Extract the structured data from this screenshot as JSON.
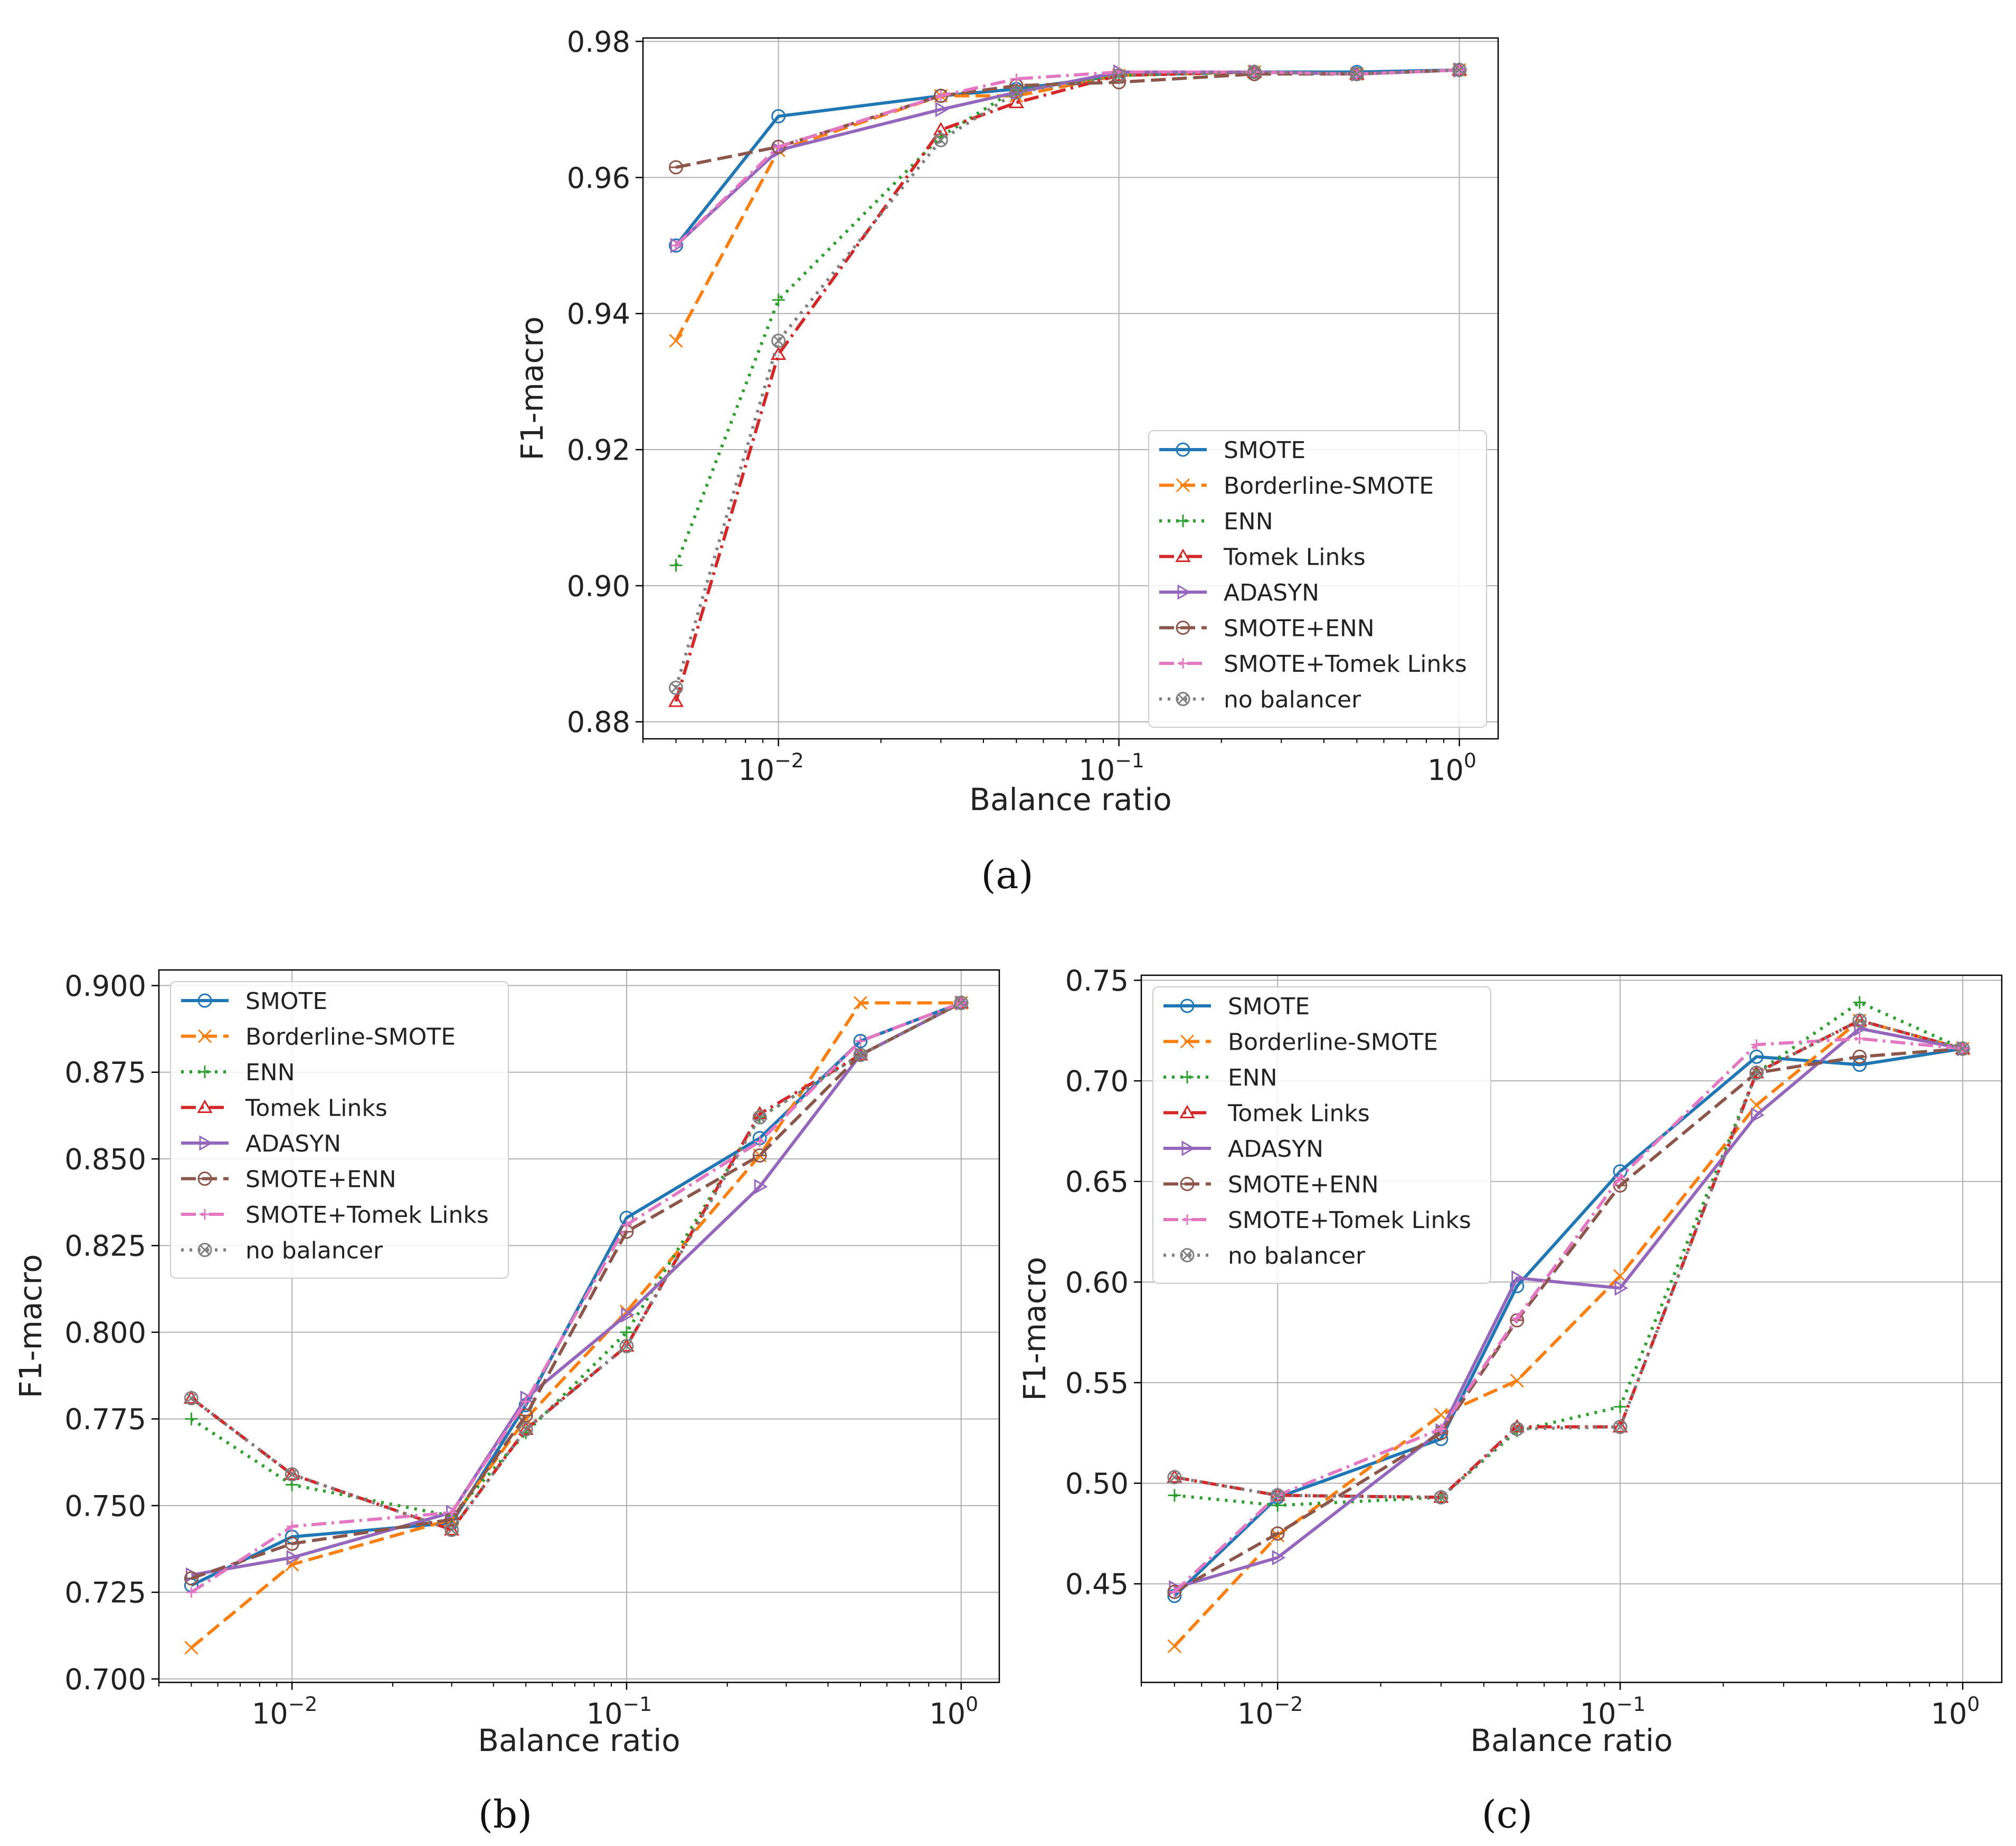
{
  "figure": {
    "panel_labels": [
      "(a)",
      "(b)",
      "(c)"
    ]
  },
  "styles": [
    {
      "name": "SMOTE",
      "color": "#1f77b4",
      "dash": "solid",
      "marker": "circle"
    },
    {
      "name": "Borderline-SMOTE",
      "color": "#ff7f0e",
      "dash": "dashed",
      "marker": "x"
    },
    {
      "name": "ENN",
      "color": "#2ca02c",
      "dash": "dotted",
      "marker": "plus"
    },
    {
      "name": "Tomek Links",
      "color": "#d62728",
      "dash": "dashdot",
      "marker": "triangle"
    },
    {
      "name": "ADASYN",
      "color": "#9467bd",
      "dash": "solid",
      "marker": "tri-right"
    },
    {
      "name": "SMOTE+ENN",
      "color": "#8c564b",
      "dash": "dashed",
      "marker": "circle-minus"
    },
    {
      "name": "SMOTE+Tomek Links",
      "color": "#e377c2",
      "dash": "dashdot",
      "marker": "plus-small"
    },
    {
      "name": "no balancer",
      "color": "#7f7f7f",
      "dash": "dotted",
      "marker": "x-circle"
    }
  ],
  "chart_data": [
    {
      "type": "line",
      "panel": "(a)",
      "xlabel": "Balance ratio",
      "ylabel": "F1-macro",
      "xscale": "log",
      "xlim": [
        0.004,
        1.3
      ],
      "ylim": [
        0.8775,
        0.9805
      ],
      "xticks": [
        {
          "value": 0.01,
          "mant": "10",
          "exp": "−2"
        },
        {
          "value": 0.1,
          "mant": "10",
          "exp": "−1"
        },
        {
          "value": 1,
          "mant": "10",
          "exp": "0"
        }
      ],
      "yticks": [
        0.88,
        0.9,
        0.92,
        0.94,
        0.96,
        0.98
      ],
      "ytick_labels": [
        "0.88",
        "0.90",
        "0.92",
        "0.94",
        "0.96",
        "0.98"
      ],
      "legend": "lower right",
      "grid": true,
      "x": [
        0.005,
        0.01,
        0.03,
        0.05,
        0.1,
        0.25,
        0.5,
        1.0
      ],
      "series": [
        {
          "name": "SMOTE",
          "values": [
            0.95,
            0.969,
            0.972,
            0.973,
            0.975,
            0.9755,
            0.9755,
            0.9758
          ]
        },
        {
          "name": "Borderline-SMOTE",
          "values": [
            0.936,
            0.964,
            0.972,
            0.972,
            0.975,
            0.9755,
            0.9752,
            0.9758
          ]
        },
        {
          "name": "ENN",
          "values": [
            0.903,
            0.942,
            0.966,
            0.973,
            0.975,
            0.9755,
            0.9752,
            0.9758
          ]
        },
        {
          "name": "Tomek Links",
          "values": [
            0.883,
            0.934,
            0.967,
            0.971,
            0.975,
            0.9755,
            0.9752,
            0.9758
          ]
        },
        {
          "name": "ADASYN",
          "values": [
            0.95,
            0.964,
            0.97,
            0.9725,
            0.9755,
            0.9755,
            0.9752,
            0.9758
          ]
        },
        {
          "name": "SMOTE+ENN",
          "values": [
            0.9615,
            0.9645,
            0.972,
            0.9735,
            0.974,
            0.9752,
            0.9752,
            0.9758
          ]
        },
        {
          "name": "SMOTE+Tomek Links",
          "values": [
            0.95,
            0.9645,
            0.972,
            0.9745,
            0.9755,
            0.9755,
            0.9752,
            0.9758
          ]
        },
        {
          "name": "no balancer",
          "values": [
            0.885,
            0.936,
            0.9655,
            0.9725,
            0.975,
            0.9755,
            0.9752,
            0.9758
          ]
        }
      ]
    },
    {
      "type": "line",
      "panel": "(b)",
      "xlabel": "Balance ratio",
      "ylabel": "F1-macro",
      "xscale": "log",
      "xlim": [
        0.004,
        1.3
      ],
      "ylim": [
        0.699,
        0.9045
      ],
      "xticks": [
        {
          "value": 0.01,
          "mant": "10",
          "exp": "−2"
        },
        {
          "value": 0.1,
          "mant": "10",
          "exp": "−1"
        },
        {
          "value": 1,
          "mant": "10",
          "exp": "0"
        }
      ],
      "yticks": [
        0.7,
        0.725,
        0.75,
        0.775,
        0.8,
        0.825,
        0.85,
        0.875,
        0.9
      ],
      "ytick_labels": [
        "0.700",
        "0.725",
        "0.750",
        "0.775",
        "0.800",
        "0.825",
        "0.850",
        "0.875",
        "0.900"
      ],
      "legend": "upper left",
      "grid": true,
      "x": [
        0.005,
        0.01,
        0.03,
        0.05,
        0.1,
        0.25,
        0.5,
        1.0
      ],
      "series": [
        {
          "name": "SMOTE",
          "values": [
            0.727,
            0.741,
            0.745,
            0.779,
            0.833,
            0.856,
            0.884,
            0.895
          ]
        },
        {
          "name": "Borderline-SMOTE",
          "values": [
            0.709,
            0.733,
            0.746,
            0.775,
            0.806,
            0.851,
            0.895,
            0.895
          ]
        },
        {
          "name": "ENN",
          "values": [
            0.775,
            0.756,
            0.747,
            0.771,
            0.8,
            0.862,
            0.88,
            0.895
          ]
        },
        {
          "name": "Tomek Links",
          "values": [
            0.781,
            0.759,
            0.743,
            0.772,
            0.796,
            0.863,
            0.88,
            0.895
          ]
        },
        {
          "name": "ADASYN",
          "values": [
            0.73,
            0.735,
            0.748,
            0.781,
            0.805,
            0.842,
            0.88,
            0.895
          ]
        },
        {
          "name": "SMOTE+ENN",
          "values": [
            0.729,
            0.739,
            0.746,
            0.776,
            0.829,
            0.851,
            0.88,
            0.895
          ]
        },
        {
          "name": "SMOTE+Tomek Links",
          "values": [
            0.725,
            0.744,
            0.748,
            0.78,
            0.831,
            0.855,
            0.884,
            0.895
          ]
        },
        {
          "name": "no balancer",
          "values": [
            0.781,
            0.759,
            0.743,
            0.772,
            0.796,
            0.862,
            0.88,
            0.895
          ]
        }
      ]
    },
    {
      "type": "line",
      "panel": "(c)",
      "xlabel": "Balance ratio",
      "ylabel": "F1-macro",
      "xscale": "log",
      "xlim": [
        0.004,
        1.3
      ],
      "ylim": [
        0.401,
        0.7525
      ],
      "xticks": [
        {
          "value": 0.01,
          "mant": "10",
          "exp": "−2"
        },
        {
          "value": 0.1,
          "mant": "10",
          "exp": "−1"
        },
        {
          "value": 1,
          "mant": "10",
          "exp": "0"
        }
      ],
      "yticks": [
        0.45,
        0.5,
        0.55,
        0.6,
        0.65,
        0.7,
        0.75
      ],
      "ytick_labels": [
        "0.45",
        "0.50",
        "0.55",
        "0.60",
        "0.65",
        "0.70",
        "0.75"
      ],
      "legend": "upper left",
      "grid": true,
      "x": [
        0.005,
        0.01,
        0.03,
        0.05,
        0.1,
        0.25,
        0.5,
        1.0
      ],
      "series": [
        {
          "name": "SMOTE",
          "values": [
            0.444,
            0.493,
            0.522,
            0.598,
            0.655,
            0.712,
            0.708,
            0.716
          ]
        },
        {
          "name": "Borderline-SMOTE",
          "values": [
            0.419,
            0.474,
            0.534,
            0.551,
            0.603,
            0.688,
            0.73,
            0.716
          ]
        },
        {
          "name": "ENN",
          "values": [
            0.494,
            0.489,
            0.493,
            0.526,
            0.538,
            0.704,
            0.739,
            0.716
          ]
        },
        {
          "name": "Tomek Links",
          "values": [
            0.503,
            0.494,
            0.493,
            0.528,
            0.528,
            0.704,
            0.73,
            0.716
          ]
        },
        {
          "name": "ADASYN",
          "values": [
            0.448,
            0.463,
            0.526,
            0.602,
            0.597,
            0.683,
            0.726,
            0.716
          ]
        },
        {
          "name": "SMOTE+ENN",
          "values": [
            0.446,
            0.475,
            0.525,
            0.581,
            0.648,
            0.704,
            0.712,
            0.716
          ]
        },
        {
          "name": "SMOTE+Tomek Links",
          "values": [
            0.446,
            0.494,
            0.527,
            0.582,
            0.652,
            0.718,
            0.721,
            0.716
          ]
        },
        {
          "name": "no balancer",
          "values": [
            0.503,
            0.494,
            0.493,
            0.527,
            0.528,
            0.704,
            0.73,
            0.716
          ]
        }
      ]
    }
  ]
}
